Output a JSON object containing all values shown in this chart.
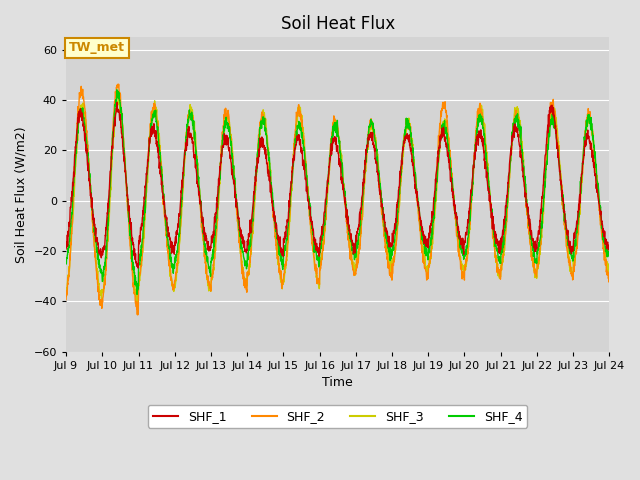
{
  "title": "Soil Heat Flux",
  "xlabel": "Time",
  "ylabel": "Soil Heat Flux (W/m2)",
  "ylim": [
    -60,
    65
  ],
  "yticks": [
    -60,
    -40,
    -20,
    0,
    20,
    40,
    60
  ],
  "background_color": "#e0e0e0",
  "plot_bg_color": "#d4d4d4",
  "colors": {
    "SHF_1": "#cc0000",
    "SHF_2": "#ff8800",
    "SHF_3": "#cccc00",
    "SHF_4": "#00cc00"
  },
  "annotation_text": "TW_met",
  "annotation_box_color": "#ffffcc",
  "annotation_border_color": "#cc8800",
  "n_days": 15,
  "start_day": 9,
  "end_day": 24,
  "points_per_day": 144
}
